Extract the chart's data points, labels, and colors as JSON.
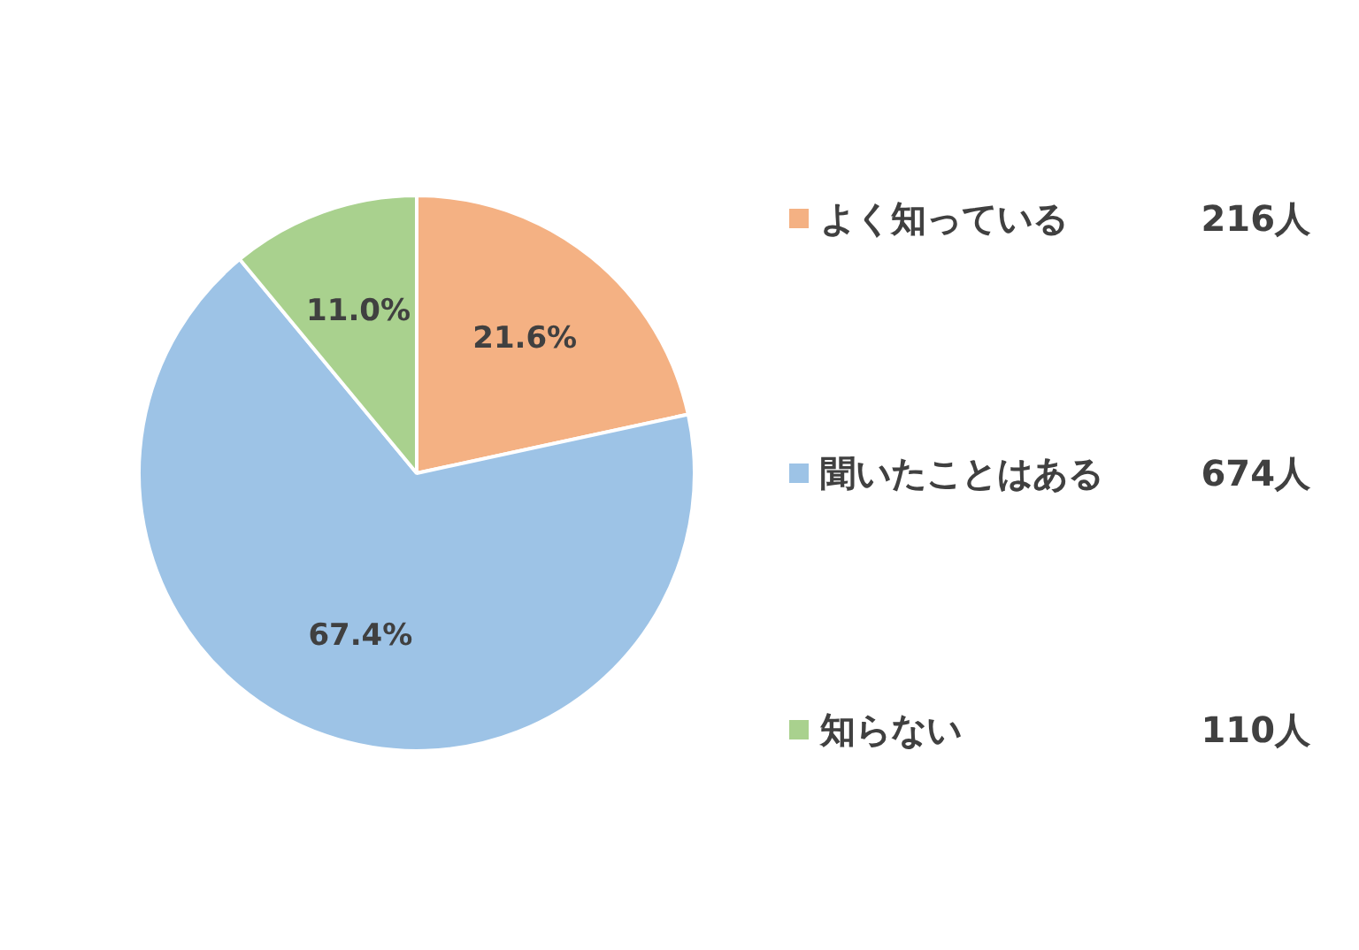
{
  "chart_data": {
    "type": "pie",
    "categories": [
      "よく知っている",
      "聞いたことはある",
      "知らない"
    ],
    "values": [
      21.6,
      67.4,
      11.0
    ],
    "colors": [
      "#f4b183",
      "#9dc3e6",
      "#a9d18e"
    ],
    "value_labels": [
      "21.6%",
      "67.4%",
      "11.0%"
    ],
    "annotations": [
      "216人",
      "674人",
      "110人"
    ],
    "legend": "right"
  }
}
